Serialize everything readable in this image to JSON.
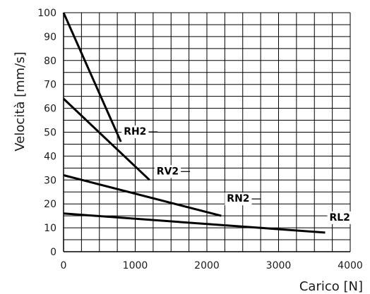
{
  "chart_data": {
    "type": "line",
    "title": "",
    "xlabel": "Carico [N]",
    "ylabel": "Velocità [mm/s]",
    "xlim": [
      0,
      4000
    ],
    "ylim": [
      0,
      100
    ],
    "x_ticks": [
      "0",
      "1000",
      "2000",
      "3000",
      "4000"
    ],
    "y_ticks": [
      "0",
      "10",
      "20",
      "30",
      "40",
      "50",
      "60",
      "70",
      "80",
      "90",
      "100"
    ],
    "grid": true,
    "series": [
      {
        "name": "RH2",
        "points": [
          [
            0,
            100
          ],
          [
            800,
            46
          ]
        ]
      },
      {
        "name": "RV2",
        "points": [
          [
            0,
            64
          ],
          [
            1200,
            30
          ]
        ]
      },
      {
        "name": "RN2",
        "points": [
          [
            0,
            32
          ],
          [
            2200,
            15
          ]
        ]
      },
      {
        "name": "RL2",
        "points": [
          [
            0,
            16
          ],
          [
            2500,
            10.5
          ],
          [
            3650,
            8
          ]
        ]
      }
    ],
    "colors": {
      "grid": "#000000",
      "series": "#000000",
      "text": "#1a1a1a"
    }
  }
}
